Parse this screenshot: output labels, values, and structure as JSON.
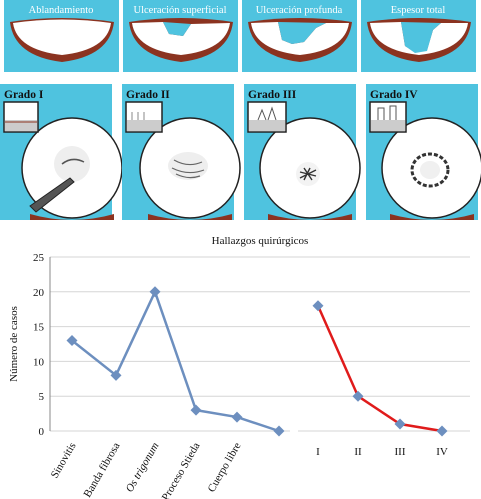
{
  "top_panels": {
    "labels": [
      "Ablandamiento",
      "Ulceración superficial",
      "Ulceración profunda",
      "Espesor total"
    ],
    "colors": {
      "background": "#4fc3df",
      "cartilage": "#ffffff",
      "bone": "#8b3320"
    }
  },
  "grade_panels": {
    "labels": [
      "Grado I",
      "Grado II",
      "Grado III",
      "Grado IV"
    ]
  },
  "chart_data": {
    "type": "line",
    "title": "Hallazgos quirúrgicos",
    "ylabel": "Número de casos",
    "ylim": [
      0,
      25
    ],
    "yticks": [
      0,
      5,
      10,
      15,
      20,
      25
    ],
    "grid": true,
    "series": [
      {
        "categories": [
          "Sinovitis",
          "Banda fibrosa",
          "Os trigonum",
          "Proceso Stieda",
          "Cuerpo libre",
          ""
        ],
        "values": [
          13,
          8,
          20,
          3,
          2,
          0
        ],
        "color": "#6d8fbf",
        "italic_category": "Os trigonum"
      },
      {
        "categories": [
          "I",
          "II",
          "III",
          "IV"
        ],
        "values": [
          18,
          5,
          1,
          0
        ],
        "color": "#e01b1b",
        "marker_color": "#6d8fbf"
      }
    ]
  }
}
